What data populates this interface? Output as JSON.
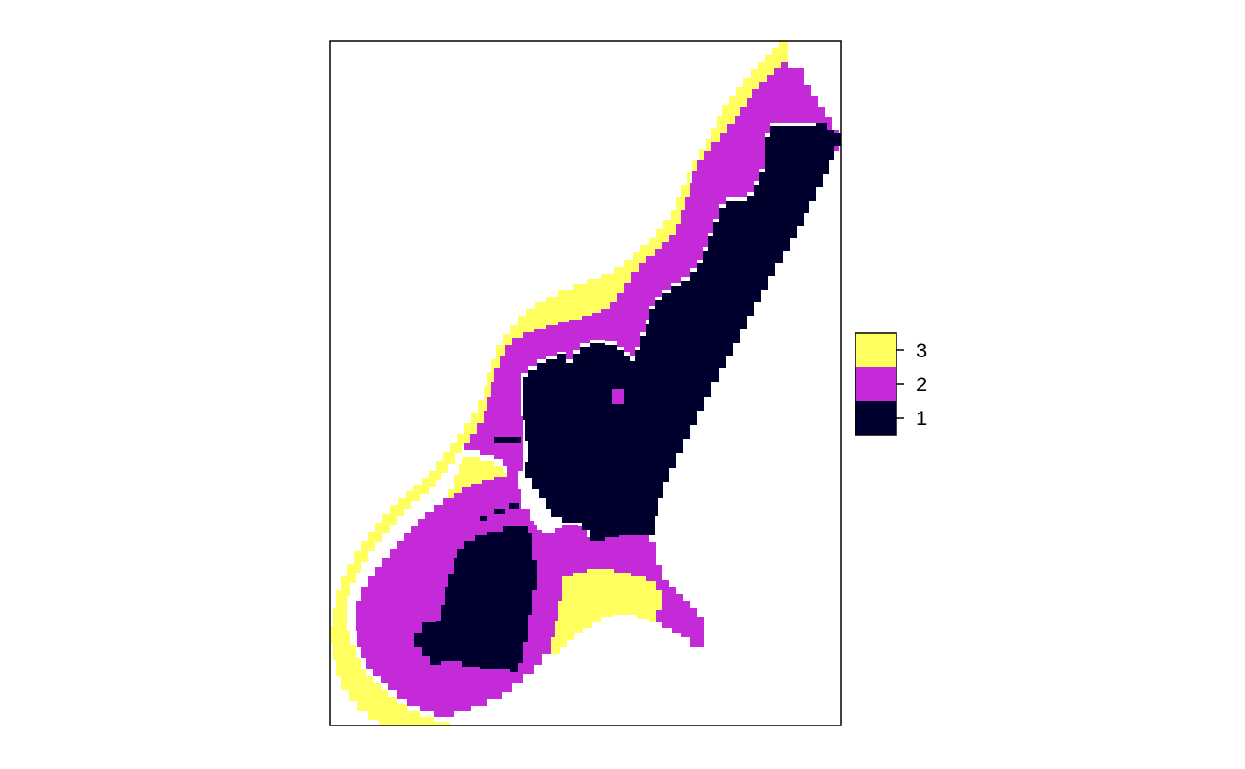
{
  "map": {
    "classes": [
      {
        "value": 1,
        "color": "#00002e"
      },
      {
        "value": 2,
        "color": "#c42ad8"
      },
      {
        "value": 3,
        "color": "#ffff60"
      }
    ]
  },
  "legend": {
    "entries": [
      {
        "label": "3",
        "color": "#ffff60"
      },
      {
        "label": "2",
        "color": "#c42ad8"
      },
      {
        "label": "1",
        "color": "#00002e"
      }
    ]
  }
}
